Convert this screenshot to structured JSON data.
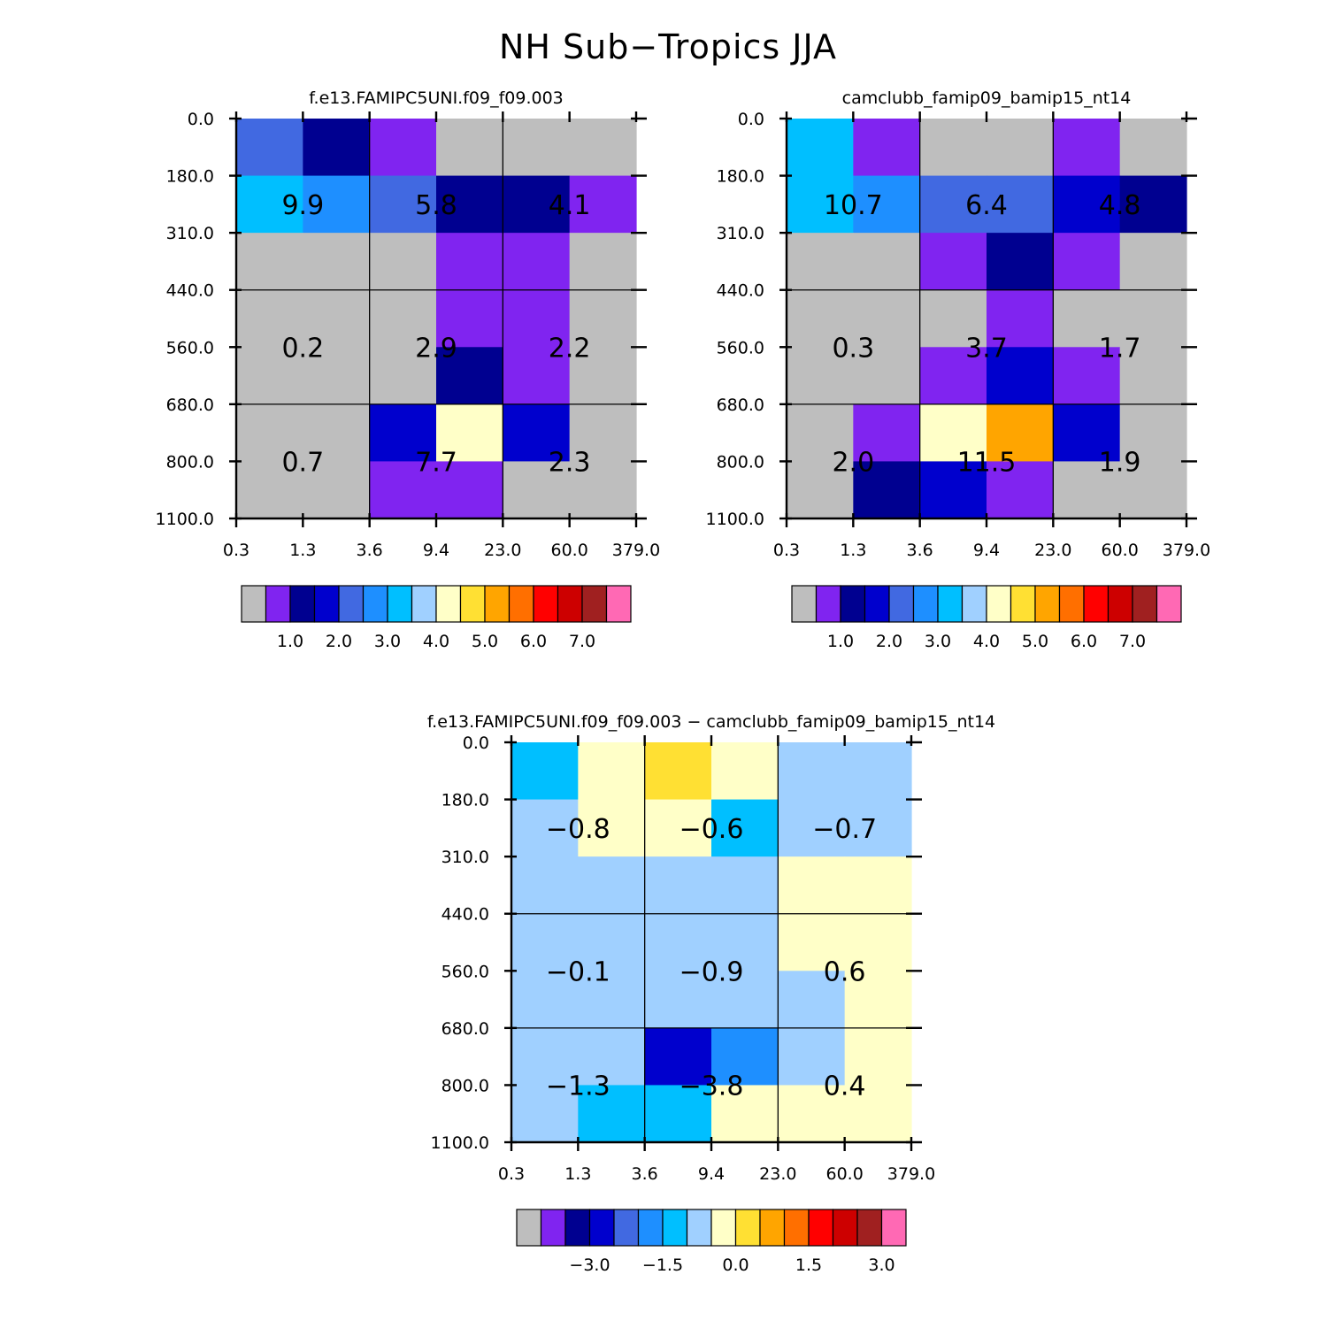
{
  "page_title": "NH Sub−Tropics JJA",
  "chart_data": [
    {
      "type": "heatmap",
      "title": "f.e13.FAMIPC5UNI.f09_f09.003",
      "x_ticks": [
        "0.3",
        "1.3",
        "3.6",
        "9.4",
        "23.0",
        "60.0",
        "379.0"
      ],
      "y_ticks": [
        "0.0",
        "180.0",
        "310.0",
        "440.0",
        "560.0",
        "680.0",
        "800.0",
        "1100.0"
      ],
      "cell_colors": [
        [
          "royal",
          "navy",
          "violet",
          "gray",
          "gray",
          "gray"
        ],
        [
          "cyan",
          "dodger",
          "royal",
          "navy",
          "navy",
          "violet"
        ],
        [
          "gray",
          "gray",
          "gray",
          "violet",
          "violet",
          "gray"
        ],
        [
          "gray",
          "gray",
          "gray",
          "violet",
          "violet",
          "gray"
        ],
        [
          "gray",
          "gray",
          "gray",
          "navy",
          "violet",
          "gray"
        ],
        [
          "gray",
          "gray",
          "blue",
          "lightyellow",
          "blue",
          "gray"
        ],
        [
          "gray",
          "gray",
          "violet",
          "violet",
          "gray",
          "gray"
        ]
      ],
      "group_values": [
        [
          "9.9",
          "5.8",
          "4.1"
        ],
        [
          "0.2",
          "2.9",
          "2.2"
        ],
        [
          "0.7",
          "7.7",
          "2.3"
        ]
      ],
      "colorbar_labels": [
        "1.0",
        "2.0",
        "3.0",
        "4.0",
        "5.0",
        "6.0",
        "7.0"
      ]
    },
    {
      "type": "heatmap",
      "title": "camclubb_famip09_bamip15_nt14",
      "x_ticks": [
        "0.3",
        "1.3",
        "3.6",
        "9.4",
        "23.0",
        "60.0",
        "379.0"
      ],
      "y_ticks": [
        "0.0",
        "180.0",
        "310.0",
        "440.0",
        "560.0",
        "680.0",
        "800.0",
        "1100.0"
      ],
      "cell_colors": [
        [
          "cyan",
          "violet",
          "gray",
          "gray",
          "violet",
          "gray"
        ],
        [
          "cyan",
          "dodger",
          "royal",
          "royal",
          "blue",
          "navy"
        ],
        [
          "gray",
          "gray",
          "violet",
          "navy",
          "violet",
          "gray"
        ],
        [
          "gray",
          "gray",
          "gray",
          "violet",
          "gray",
          "gray"
        ],
        [
          "gray",
          "gray",
          "violet",
          "blue",
          "violet",
          "gray"
        ],
        [
          "gray",
          "violet",
          "lightyellow",
          "orange",
          "blue",
          "gray"
        ],
        [
          "gray",
          "navy",
          "blue",
          "violet",
          "gray",
          "gray"
        ]
      ],
      "group_values": [
        [
          "10.7",
          "6.4",
          "4.8"
        ],
        [
          "0.3",
          "3.7",
          "1.7"
        ],
        [
          "2.0",
          "11.5",
          "1.9"
        ]
      ],
      "colorbar_labels": [
        "1.0",
        "2.0",
        "3.0",
        "4.0",
        "5.0",
        "6.0",
        "7.0"
      ]
    },
    {
      "type": "heatmap",
      "title": "f.e13.FAMIPC5UNI.f09_f09.003 − camclubb_famip09_bamip15_nt14",
      "x_ticks": [
        "0.3",
        "1.3",
        "3.6",
        "9.4",
        "23.0",
        "60.0",
        "379.0"
      ],
      "y_ticks": [
        "0.0",
        "180.0",
        "310.0",
        "440.0",
        "560.0",
        "680.0",
        "800.0",
        "1100.0"
      ],
      "cell_colors": [
        [
          "cyan",
          "lightyellow",
          "gold",
          "lightyellow",
          "lightblue",
          "lightblue"
        ],
        [
          "lightblue",
          "lightyellow",
          "lightyellow",
          "cyan",
          "lightblue",
          "lightblue"
        ],
        [
          "lightblue",
          "lightblue",
          "lightblue",
          "lightblue",
          "lightyellow",
          "lightyellow"
        ],
        [
          "lightblue",
          "lightblue",
          "lightblue",
          "lightblue",
          "lightyellow",
          "lightyellow"
        ],
        [
          "lightblue",
          "lightblue",
          "lightblue",
          "lightblue",
          "lightblue",
          "lightyellow"
        ],
        [
          "lightblue",
          "lightblue",
          "blue",
          "dodger",
          "lightblue",
          "lightyellow"
        ],
        [
          "lightblue",
          "cyan",
          "cyan",
          "lightyellow",
          "lightyellow",
          "lightyellow"
        ]
      ],
      "group_values": [
        [
          "−0.8",
          "−0.6",
          "−0.7"
        ],
        [
          "−0.1",
          "−0.9",
          "0.6"
        ],
        [
          "−1.3",
          "−3.8",
          "0.4"
        ]
      ],
      "colorbar_labels": [
        "−3.0",
        "−1.5",
        "0.0",
        "1.5",
        "3.0"
      ]
    }
  ],
  "palette": {
    "gray": "#bebebe",
    "violet": "#8024f0",
    "navy": "#000090",
    "blue": "#0000cd",
    "royal": "#4169e1",
    "dodger": "#1e8fff",
    "cyan": "#00bfff",
    "lightblue": "#a0d0ff",
    "lightyellow": "#ffffc8",
    "gold": "#ffe033",
    "orange": "#ffa500",
    "darkorange": "#ff6f00",
    "red": "#ff0000",
    "darkred": "#cd0000",
    "brown": "#a02020",
    "pink": "#ff69b4"
  },
  "colorbar_swatches": [
    "gray",
    "violet",
    "navy",
    "blue",
    "royal",
    "dodger",
    "cyan",
    "lightblue",
    "lightyellow",
    "gold",
    "orange",
    "darkorange",
    "red",
    "darkred",
    "brown",
    "pink"
  ]
}
